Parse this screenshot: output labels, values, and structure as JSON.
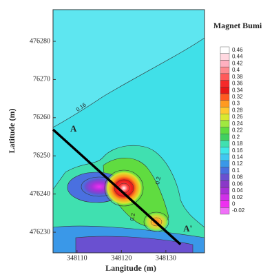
{
  "chart_data": {
    "type": "contour",
    "title": "Magnet Bumi",
    "xlabel": "Langitude (m)",
    "ylabel": "Latitude (m)",
    "xlim": [
      348104.6,
      348138.7
    ],
    "ylim": [
      476224.6,
      476288.3
    ],
    "xticks": [
      348110,
      348120,
      348130
    ],
    "yticks": [
      476280,
      {
        "value": 476270,
        "label": "76270"
      },
      {
        "value": 476260,
        "label": "76260"
      },
      {
        "value": 476250,
        "label": "76250"
      },
      476240,
      476230
    ],
    "colorbar": {
      "levels": [
        0.46,
        0.44,
        0.42,
        0.4,
        0.38,
        0.36,
        0.34,
        0.32,
        0.3,
        0.28,
        0.26,
        0.24,
        0.22,
        0.2,
        0.18,
        0.16,
        0.14,
        0.12,
        0.1,
        0.08,
        0.06,
        0.04,
        0.02,
        0,
        -0.02
      ],
      "colors": [
        "#ffffff",
        "#ffd8e0",
        "#ffb0c0",
        "#ff8a90",
        "#ff5a5a",
        "#f52a2a",
        "#e81818",
        "#ff5a20",
        "#ff9a20",
        "#ffc830",
        "#d8e830",
        "#a0e840",
        "#60dc40",
        "#40d060",
        "#40e0b0",
        "#40e8e8",
        "#40c8f0",
        "#3a98e8",
        "#4a70e0",
        "#6a50d0",
        "#8a38c8",
        "#a830d8",
        "#d030e8",
        "#ee30f0",
        "#f070f8"
      ]
    },
    "contour_labels": [
      "0.16",
      "0.2",
      "0.2"
    ],
    "profile": {
      "labels": [
        "A",
        "A'"
      ],
      "x": [
        348104.6,
        348133.3
      ],
      "y": [
        476256.9,
        476226.8
      ]
    }
  }
}
